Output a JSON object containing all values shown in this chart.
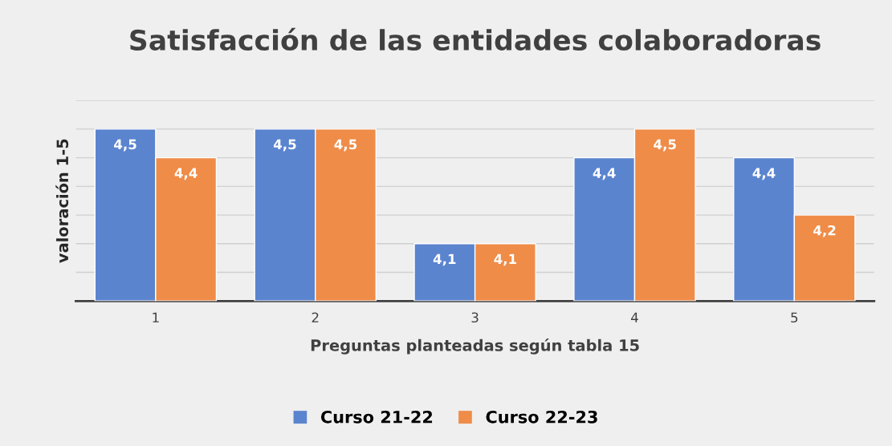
{
  "chart_data": {
    "type": "bar",
    "title": "Satisfacción de las entidades colaboradoras",
    "xlabel": "Preguntas planteadas según tabla 15",
    "ylabel": "valoración 1-5",
    "categories": [
      "1",
      "2",
      "3",
      "4",
      "5"
    ],
    "series": [
      {
        "name": "Curso 21-22",
        "color": "#5b84cf",
        "values": [
          4.5,
          4.5,
          4.1,
          4.4,
          4.4
        ],
        "value_labels": [
          "4,5",
          "4,5",
          "4,1",
          "4,4",
          "4,4"
        ]
      },
      {
        "name": "Curso 22-23",
        "color": "#ef8c48",
        "values": [
          4.4,
          4.5,
          4.1,
          4.5,
          4.2
        ],
        "value_labels": [
          "4,4",
          "4,5",
          "4,1",
          "4,5",
          "4,2"
        ]
      }
    ],
    "ylim": [
      3.9,
      4.6
    ],
    "yticks": [
      {
        "value": 3.9,
        "label": null
      },
      {
        "value": 4.0,
        "label": null
      },
      {
        "value": 4.1,
        "label": null
      },
      {
        "value": 4.2,
        "label": null
      },
      {
        "value": 4.3,
        "label": null
      },
      {
        "value": 4.4,
        "label": null
      },
      {
        "value": 4.5,
        "label": null
      },
      {
        "value": 4.6,
        "label": null
      }
    ],
    "tick_labels": "x",
    "grid": "y",
    "legend": "bottom"
  }
}
